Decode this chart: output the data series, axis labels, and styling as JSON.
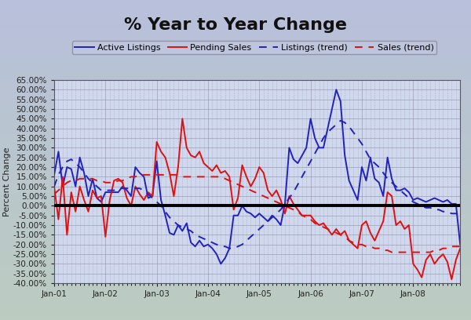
{
  "title": "% Year to Year Change",
  "ylabel": "Percent Change",
  "background_color_top": "#a8aed0",
  "background_color_bottom": "#c8d8d0",
  "plot_bg_color": "#d0d8ee",
  "ylim": [
    -0.4,
    0.65
  ],
  "yticks": [
    -0.4,
    -0.35,
    -0.3,
    -0.25,
    -0.2,
    -0.15,
    -0.1,
    -0.05,
    0.0,
    0.05,
    0.1,
    0.15,
    0.2,
    0.25,
    0.3,
    0.35,
    0.4,
    0.45,
    0.5,
    0.55,
    0.6,
    0.65
  ],
  "xtick_labels": [
    "Jan-01",
    "Jan-02",
    "Jan-03",
    "Jan-04",
    "Jan-05",
    "Jan-06",
    "Jan-07",
    "Jan-08"
  ],
  "active_listings": [
    0.16,
    0.28,
    0.1,
    0.2,
    0.19,
    0.1,
    0.25,
    0.17,
    0.05,
    0.14,
    0.04,
    0.02,
    0.07,
    0.07,
    0.07,
    0.07,
    0.1,
    0.08,
    0.05,
    0.2,
    0.17,
    0.15,
    0.04,
    0.05,
    0.23,
    0.03,
    -0.05,
    -0.14,
    -0.15,
    -0.1,
    -0.13,
    -0.09,
    -0.19,
    -0.21,
    -0.18,
    -0.21,
    -0.2,
    -0.22,
    -0.25,
    -0.3,
    -0.27,
    -0.22,
    -0.05,
    -0.05,
    0.0,
    -0.03,
    -0.04,
    -0.06,
    -0.04,
    -0.06,
    -0.08,
    -0.05,
    -0.07,
    -0.1,
    0.01,
    0.3,
    0.24,
    0.22,
    0.26,
    0.3,
    0.45,
    0.35,
    0.3,
    0.3,
    0.4,
    0.5,
    0.6,
    0.54,
    0.26,
    0.13,
    0.08,
    0.03,
    0.2,
    0.13,
    0.25,
    0.14,
    0.12,
    0.05,
    0.25,
    0.14,
    0.08,
    0.08,
    0.09,
    0.07,
    0.03,
    0.04,
    0.03,
    0.02,
    0.03,
    0.04,
    0.03,
    0.02,
    0.03,
    0.01,
    0.01,
    -0.2
  ],
  "pending_sales": [
    0.1,
    -0.07,
    0.15,
    -0.15,
    0.07,
    -0.03,
    0.1,
    0.03,
    -0.03,
    0.08,
    0.04,
    0.05,
    -0.16,
    0.03,
    0.13,
    0.14,
    0.12,
    0.04,
    0.0,
    0.1,
    0.06,
    0.03,
    0.07,
    0.05,
    0.33,
    0.28,
    0.25,
    0.17,
    0.05,
    0.2,
    0.45,
    0.3,
    0.26,
    0.25,
    0.28,
    0.22,
    0.2,
    0.18,
    0.21,
    0.17,
    0.18,
    0.15,
    -0.02,
    0.04,
    0.21,
    0.15,
    0.1,
    0.14,
    0.2,
    0.17,
    0.08,
    0.05,
    0.08,
    0.03,
    -0.04,
    0.05,
    0.01,
    -0.02,
    -0.05,
    -0.05,
    -0.05,
    -0.08,
    -0.1,
    -0.09,
    -0.12,
    -0.15,
    -0.12,
    -0.15,
    -0.13,
    -0.18,
    -0.2,
    -0.22,
    -0.1,
    -0.08,
    -0.14,
    -0.18,
    -0.13,
    -0.08,
    0.07,
    0.05,
    -0.1,
    -0.08,
    -0.12,
    -0.1,
    -0.3,
    -0.33,
    -0.37,
    -0.28,
    -0.25,
    -0.3,
    -0.27,
    -0.25,
    -0.29,
    -0.38,
    -0.28,
    -0.22
  ],
  "listings_trend": [
    0.1,
    0.16,
    0.2,
    0.23,
    0.24,
    0.22,
    0.2,
    0.17,
    0.14,
    0.12,
    0.1,
    0.08,
    0.08,
    0.08,
    0.08,
    0.09,
    0.09,
    0.09,
    0.09,
    0.09,
    0.09,
    0.08,
    0.06,
    0.04,
    0.02,
    0.0,
    -0.03,
    -0.06,
    -0.08,
    -0.1,
    -0.11,
    -0.12,
    -0.13,
    -0.15,
    -0.16,
    -0.17,
    -0.18,
    -0.19,
    -0.2,
    -0.21,
    -0.21,
    -0.22,
    -0.22,
    -0.21,
    -0.2,
    -0.18,
    -0.16,
    -0.14,
    -0.12,
    -0.1,
    -0.08,
    -0.06,
    -0.04,
    -0.02,
    0.01,
    0.04,
    0.07,
    0.11,
    0.15,
    0.19,
    0.23,
    0.27,
    0.31,
    0.35,
    0.38,
    0.4,
    0.42,
    0.44,
    0.43,
    0.41,
    0.38,
    0.35,
    0.32,
    0.28,
    0.24,
    0.22,
    0.2,
    0.17,
    0.14,
    0.12,
    0.1,
    0.08,
    0.06,
    0.04,
    0.02,
    0.01,
    0.0,
    -0.01,
    -0.01,
    -0.02,
    -0.02,
    -0.03,
    -0.03,
    -0.04,
    -0.04,
    -0.05
  ],
  "sales_trend": [
    0.06,
    0.08,
    0.1,
    0.12,
    0.13,
    0.13,
    0.14,
    0.14,
    0.14,
    0.14,
    0.13,
    0.13,
    0.12,
    0.12,
    0.12,
    0.13,
    0.13,
    0.14,
    0.15,
    0.15,
    0.16,
    0.16,
    0.16,
    0.16,
    0.16,
    0.16,
    0.16,
    0.16,
    0.16,
    0.16,
    0.15,
    0.15,
    0.15,
    0.15,
    0.15,
    0.15,
    0.15,
    0.15,
    0.15,
    0.15,
    0.14,
    0.13,
    0.12,
    0.11,
    0.1,
    0.09,
    0.08,
    0.07,
    0.06,
    0.05,
    0.04,
    0.03,
    0.02,
    0.01,
    0.0,
    -0.01,
    -0.02,
    -0.03,
    -0.05,
    -0.06,
    -0.07,
    -0.09,
    -0.1,
    -0.11,
    -0.12,
    -0.13,
    -0.14,
    -0.15,
    -0.16,
    -0.18,
    -0.19,
    -0.2,
    -0.2,
    -0.21,
    -0.21,
    -0.22,
    -0.22,
    -0.23,
    -0.23,
    -0.24,
    -0.24,
    -0.24,
    -0.24,
    -0.24,
    -0.24,
    -0.24,
    -0.24,
    -0.24,
    -0.24,
    -0.23,
    -0.23,
    -0.22,
    -0.22,
    -0.21,
    -0.21,
    -0.21
  ],
  "active_color": "#2222bb",
  "sales_color": "#dd1111",
  "grid_color": "#9090a8",
  "zero_line_color": "#000000",
  "n_points": 96,
  "title_fontsize": 16,
  "legend_fontsize": 8,
  "tick_fontsize": 7.5,
  "ylabel_fontsize": 8
}
